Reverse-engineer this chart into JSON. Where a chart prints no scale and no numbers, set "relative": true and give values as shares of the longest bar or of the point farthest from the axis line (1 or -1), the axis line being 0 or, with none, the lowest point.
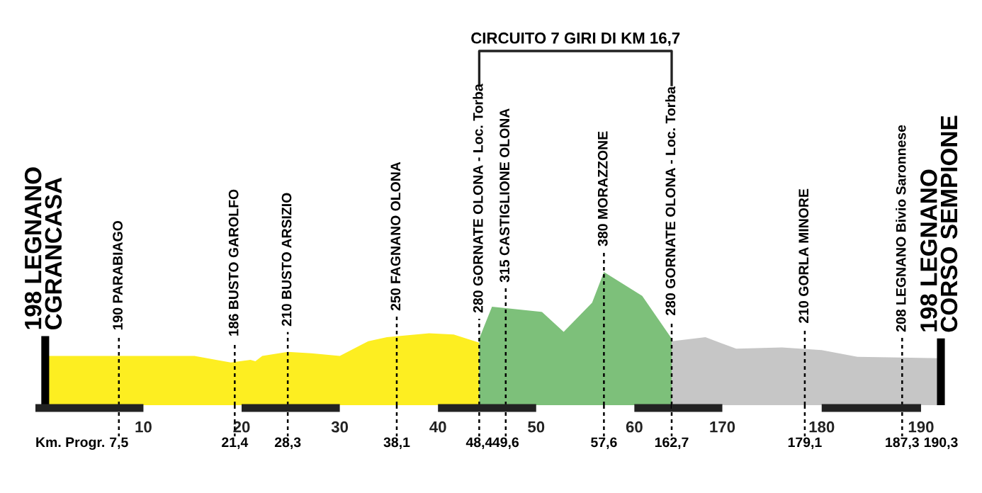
{
  "chart_data": [
    {
      "type": "area",
      "relative": true,
      "tick_labels": "x",
      "xlim": [
        -1,
        63.8
      ],
      "xticks": [
        10,
        20,
        30,
        40,
        50,
        60
      ],
      "series": [
        {
          "color": "#fdee21",
          "x": [
            0,
            15.2,
            18.9,
            20.9,
            21.4,
            22.1,
            24.7,
            27.1,
            30.0,
            32.9,
            34.8,
            39.1,
            41.6,
            44.2
          ],
          "values": [
            0.37,
            0.37,
            0.32,
            0.34,
            0.33,
            0.37,
            0.4,
            0.39,
            0.37,
            0.48,
            0.51,
            0.54,
            0.53,
            0.47
          ]
        },
        {
          "color": "#7dc07a",
          "x": [
            44.2,
            45.5,
            50.6,
            52.8,
            55.7,
            56.9,
            60.8,
            63.8
          ],
          "values": [
            0.5,
            0.74,
            0.7,
            0.55,
            0.77,
            1,
            0.82,
            0.5
          ]
        }
      ],
      "ref_lines": [
        {
          "axis": "x",
          "value": 0,
          "label": "198 LEGNANO\nCGRANCASA",
          "color": "#000000",
          "line_style": "solid"
        },
        {
          "axis": "x",
          "value": 7.5,
          "label": "190 PARABIAGO",
          "color": "#000000",
          "line_style": "dashed"
        },
        {
          "axis": "x",
          "value": 19.3,
          "label": "186 BUSTO GAROLFO",
          "color": "#000000",
          "line_style": "dashed"
        },
        {
          "axis": "x",
          "value": 24.7,
          "label": "210 BUSTO ARSIZIO",
          "color": "#000000",
          "line_style": "dashed"
        },
        {
          "axis": "x",
          "value": 35.8,
          "label": "250 FAGNANO OLONA",
          "color": "#000000",
          "line_style": "dashed"
        },
        {
          "axis": "x",
          "value": 44.2,
          "label": "280 GORNATE OLONA - Loc. Torba",
          "color": "#000000",
          "line_style": "dashed"
        },
        {
          "axis": "x",
          "value": 46.9,
          "label": "315 CASTIGLIONE OLONA",
          "color": "#000000",
          "line_style": "dashed"
        },
        {
          "axis": "x",
          "value": 56.9,
          "label": "380 MORAZZONE",
          "color": "#000000",
          "line_style": "dashed"
        }
      ],
      "annotations": [
        "Km. Progr.",
        "CIRCUITO 7 GIRI DI KM 16,7",
        "7,5",
        "21,4",
        "28,3",
        "38,1",
        "48,4",
        "49,6",
        "57,6"
      ]
    },
    {
      "type": "area",
      "relative": true,
      "tick_labels": "x",
      "xlim": [
        164.9,
        192.0
      ],
      "xticks": [
        170,
        180,
        190
      ],
      "series": [
        {
          "color": "#c6c6c6",
          "x": [
            164.9,
            168.3,
            171.4,
            176.0,
            180.0,
            183.6,
            192.0
          ],
          "values": [
            0.94,
            1,
            0.83,
            0.85,
            0.81,
            0.71,
            0.69
          ]
        }
      ],
      "ref_lines": [
        {
          "axis": "x",
          "value": 164.9,
          "label": "280 GORNATE OLONA - Loc. Torba",
          "color": "#000000",
          "line_style": "dashed"
        },
        {
          "axis": "x",
          "value": 178.3,
          "label": "210 GORLA MINORE",
          "color": "#000000",
          "line_style": "dashed"
        },
        {
          "axis": "x",
          "value": 188.1,
          "label": "208 LEGNANO Bivio Saronnese",
          "color": "#000000",
          "line_style": "dashed"
        },
        {
          "axis": "x",
          "value": 192.0,
          "label": "198 LEGNANO\nCORSO SEMPIONE",
          "color": "#000000",
          "line_style": "solid"
        }
      ],
      "annotations": [
        "162,7",
        "179,1",
        "187,3",
        "190,3"
      ]
    }
  ]
}
